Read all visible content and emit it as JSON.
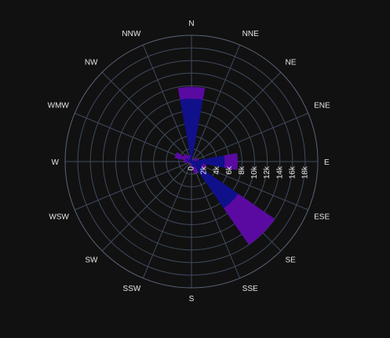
{
  "chart_data": {
    "type": "barpolar",
    "directions": [
      "N",
      "NNE",
      "NE",
      "ENE",
      "E",
      "ESE",
      "SE",
      "SSE",
      "S",
      "SSW",
      "SW",
      "WSW",
      "W",
      "WMW",
      "NW",
      "NNW"
    ],
    "radial_ticks": [
      "0",
      "2k",
      "4k",
      "6k",
      "8k",
      "10k",
      "12k",
      "14k",
      "16k",
      "18k"
    ],
    "radial_range": [
      0,
      20000
    ],
    "radial_axis_angle_deg": 90,
    "grid": true,
    "series": [
      {
        "color": "#10108a",
        "values": [
          10000,
          300,
          200,
          500,
          5300,
          1800,
          9000,
          900,
          300,
          300,
          300,
          200,
          600,
          1000,
          500,
          700
        ]
      },
      {
        "color": "#5a0aa0",
        "values": [
          1800,
          0,
          300,
          600,
          2000,
          600,
          7000,
          1000,
          500,
          0,
          0,
          200,
          600,
          1700,
          1000,
          300
        ]
      }
    ]
  }
}
